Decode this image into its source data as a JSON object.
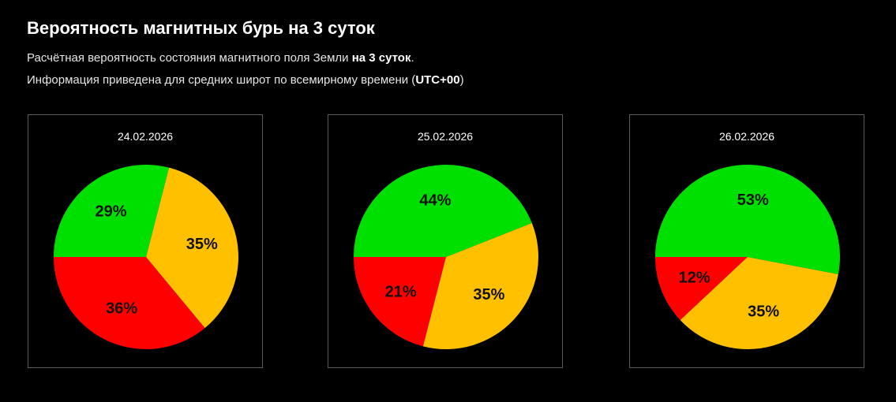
{
  "header": {
    "title": "Вероятность магнитных бурь на 3 суток",
    "line1_text": "Расчётная вероятность состояния магнитного поля Земли ",
    "line1_bold": "на 3 суток",
    "line1_end": ".",
    "line2_text": "Информация приведена для средних широт по всемирному времени (",
    "line2_bold": "UTC+00",
    "line2_end": ")"
  },
  "colors": {
    "background": "#000000",
    "green": "#00e000",
    "yellow": "#ffc000",
    "red": "#ff0000"
  },
  "chart_data": [
    {
      "type": "pie",
      "title": "24.02.2026",
      "slices": [
        {
          "value": 35,
          "label": "35%",
          "color": "#ffc000"
        },
        {
          "value": 36,
          "label": "36%",
          "color": "#ff0000"
        },
        {
          "value": 29,
          "label": "29%",
          "color": "#00e000"
        }
      ]
    },
    {
      "type": "pie",
      "title": "25.02.2026",
      "slices": [
        {
          "value": 35,
          "label": "35%",
          "color": "#ffc000"
        },
        {
          "value": 21,
          "label": "21%",
          "color": "#ff0000"
        },
        {
          "value": 44,
          "label": "44%",
          "color": "#00e000"
        }
      ]
    },
    {
      "type": "pie",
      "title": "26.02.2026",
      "slices": [
        {
          "value": 35,
          "label": "35%",
          "color": "#ffc000"
        },
        {
          "value": 12,
          "label": "12%",
          "color": "#ff0000"
        },
        {
          "value": 53,
          "label": "53%",
          "color": "#00e000"
        }
      ]
    }
  ]
}
